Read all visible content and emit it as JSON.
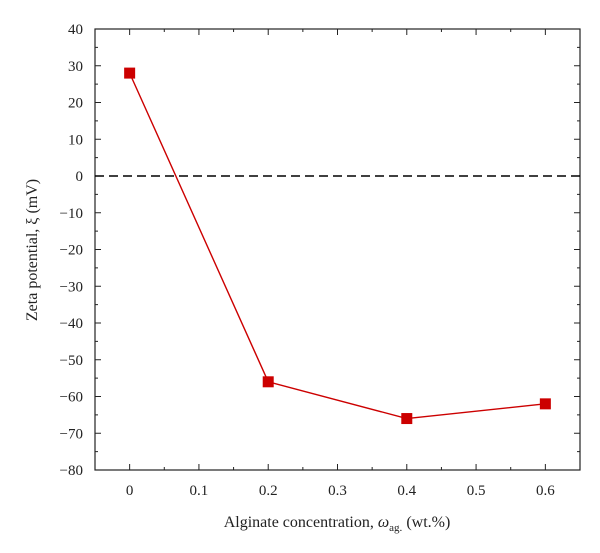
{
  "chart_data": {
    "type": "line",
    "xlabel": {
      "main": "Alginate concentration, ",
      "symbol": "ω",
      "subscript": "ag.",
      "unit": " (wt.%)"
    },
    "ylabel": "Zeta potential, ξ (mV)",
    "x_ticks": [
      "0",
      "0.1",
      "0.2",
      "0.3",
      "0.4",
      "0.5",
      "0.6"
    ],
    "y_ticks": [
      "40",
      "30",
      "20",
      "10",
      "0",
      "−10",
      "−20",
      "−30",
      "−40",
      "−50",
      "−60",
      "−70",
      "−80"
    ],
    "xlim": [
      -0.05,
      0.65
    ],
    "ylim": [
      -80,
      40
    ],
    "reference_line": {
      "y": 0,
      "style": "dashed",
      "color": "#000000"
    },
    "series": [
      {
        "x": [
          0,
          0.2,
          0.4,
          0.6
        ],
        "y": [
          28,
          -56,
          -66,
          -62
        ],
        "color": "#cc0000",
        "marker": "square"
      }
    ]
  }
}
